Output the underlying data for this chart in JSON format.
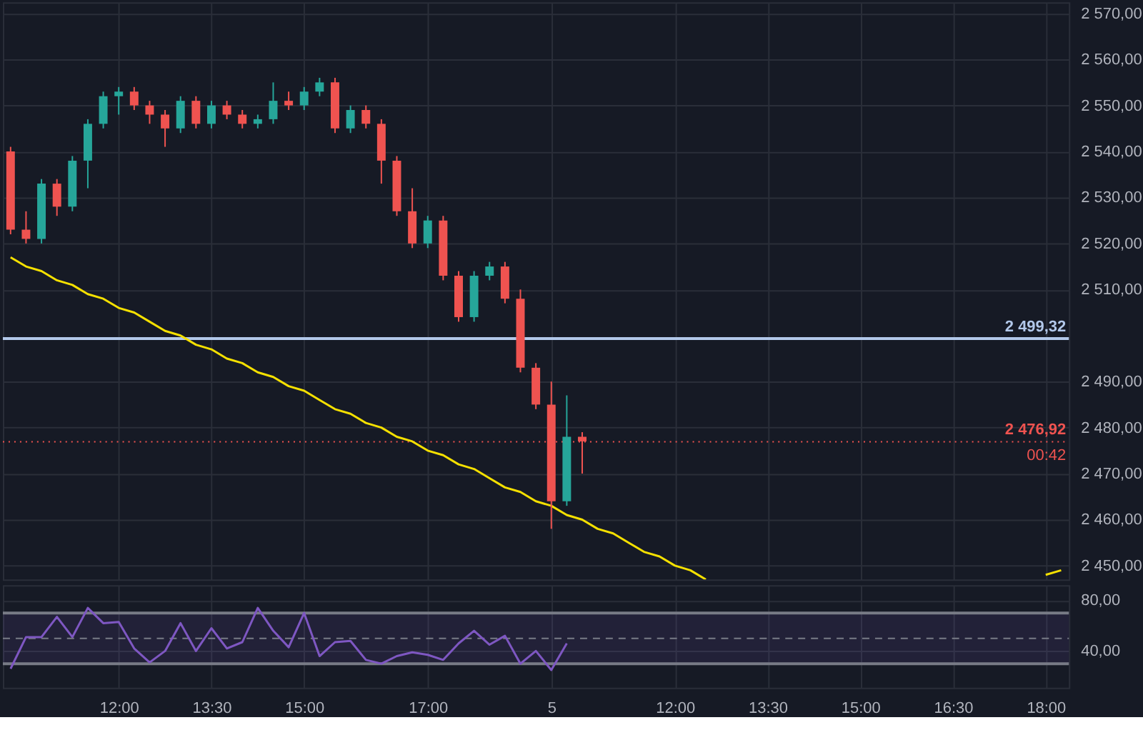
{
  "chart_data": [
    {
      "type": "candlestick",
      "categories": [
        null,
        null,
        null,
        null,
        null,
        null,
        null,
        null,
        null,
        null,
        null,
        null,
        null,
        null,
        null,
        null,
        null,
        null,
        null,
        null,
        null,
        null,
        null,
        null,
        null,
        null,
        null,
        null,
        null,
        null,
        null,
        null,
        null,
        null,
        null,
        null,
        null,
        null,
        null,
        null,
        null,
        null,
        null,
        null,
        null,
        null,
        null,
        null,
        null,
        null,
        null,
        null,
        null,
        null,
        null,
        null,
        null,
        null,
        null,
        null,
        null,
        null,
        null,
        null,
        null,
        null,
        null,
        null,
        null
      ],
      "ohlc": [
        [
          2540,
          2541,
          2522,
          2523
        ],
        [
          2523,
          2527,
          2520,
          2521
        ],
        [
          2521,
          2534,
          2520,
          2533
        ],
        [
          2533,
          2534,
          2526,
          2528
        ],
        [
          2528,
          2539,
          2527,
          2538
        ],
        [
          2538,
          2547,
          2532,
          2546
        ],
        [
          2546,
          2553,
          2545,
          2552
        ],
        [
          2552,
          2554,
          2548,
          2553
        ],
        [
          2553,
          2554,
          2549,
          2550
        ],
        [
          2550,
          2551,
          2546,
          2548
        ],
        [
          2548,
          2549,
          2541,
          2545
        ],
        [
          2545,
          2552,
          2544,
          2551
        ],
        [
          2551,
          2552,
          2545,
          2546
        ],
        [
          2546,
          2551,
          2545,
          2550
        ],
        [
          2550,
          2551,
          2547,
          2548
        ],
        [
          2548,
          2549,
          2545,
          2546
        ],
        [
          2546,
          2548,
          2545,
          2547
        ],
        [
          2547,
          2555,
          2546,
          2551
        ],
        [
          2551,
          2553,
          2549,
          2550
        ],
        [
          2550,
          2554,
          2549,
          2553
        ],
        [
          2553,
          2556,
          2552,
          2555
        ],
        [
          2555,
          2556,
          2544,
          2545
        ],
        [
          2545,
          2550,
          2544,
          2549
        ],
        [
          2549,
          2550,
          2545,
          2546
        ],
        [
          2546,
          2547,
          2533,
          2538
        ],
        [
          2538,
          2539,
          2526,
          2527
        ],
        [
          2527,
          2532,
          2519,
          2520
        ],
        [
          2520,
          2526,
          2519,
          2525
        ],
        [
          2525,
          2526,
          2512,
          2513
        ],
        [
          2513,
          2514,
          2503,
          2504
        ],
        [
          2504,
          2514,
          2503,
          2513
        ],
        [
          2513,
          2516,
          2512,
          2515
        ],
        [
          2515,
          2516,
          2507,
          2508
        ],
        [
          2508,
          2510,
          2492,
          2493
        ],
        [
          2493,
          2494,
          2484,
          2485
        ],
        [
          2485,
          2490,
          2458,
          2464
        ],
        [
          2464,
          2487,
          2463,
          2478
        ],
        [
          2478,
          2479,
          2470,
          2477
        ],
        null,
        null,
        null,
        null,
        null,
        null,
        null,
        null,
        null,
        null,
        null,
        null,
        null,
        null,
        null,
        null,
        null,
        null,
        null,
        null,
        null,
        null,
        null,
        null,
        null,
        null,
        null,
        null,
        null,
        null,
        null
      ],
      "colors": [
        "#ef5350",
        "#ef5350",
        "#26a69a",
        "#ef5350",
        "#26a69a",
        "#26a69a",
        "#26a69a",
        "#26a69a",
        "#ef5350",
        "#ef5350",
        "#ef5350",
        "#26a69a",
        "#ef5350",
        "#26a69a",
        "#ef5350",
        "#ef5350",
        "#26a69a",
        "#26a69a",
        "#ef5350",
        "#26a69a",
        "#26a69a",
        "#ef5350",
        "#26a69a",
        "#ef5350",
        "#ef5350",
        "#ef5350",
        "#ef5350",
        "#26a69a",
        "#ef5350",
        "#ef5350",
        "#26a69a",
        "#26a69a",
        "#ef5350",
        "#ef5350",
        "#ef5350",
        "#ef5350",
        "#26a69a",
        "#ef5350",
        null,
        null,
        null,
        null,
        null,
        null,
        null,
        null,
        null,
        null,
        null,
        null,
        null,
        null,
        null,
        null,
        null,
        null,
        null,
        null,
        null,
        null,
        null,
        null,
        null,
        null,
        null,
        null,
        null,
        null,
        null
      ],
      "series": [
        {
          "type": "line",
          "color": "#f5e000",
          "values": [
            2517,
            2515,
            2514,
            2512,
            2511,
            2509,
            2508,
            2506,
            2505,
            2503,
            2501,
            2500,
            2498,
            2497,
            2495,
            2494,
            2492,
            2491,
            2489,
            2488,
            2486,
            2484,
            2483,
            2481,
            2480,
            2478,
            2477,
            2475,
            2474,
            2472,
            2471,
            2469,
            2467,
            2466,
            2464,
            2463,
            2461,
            2460,
            2458,
            2457,
            2455,
            2453,
            2452,
            2450,
            2449,
            2447,
            null,
            null,
            null,
            null,
            null,
            null,
            null,
            null,
            null,
            null,
            null,
            null,
            null,
            null,
            null,
            null,
            null,
            null,
            null,
            null,
            null,
            null,
            null
          ]
        },
        {
          "type": "line",
          "color": "#f5e000",
          "values": [
            null,
            null,
            null,
            null,
            null,
            null,
            null,
            null,
            null,
            null,
            null,
            null,
            null,
            null,
            null,
            null,
            null,
            null,
            null,
            null,
            null,
            null,
            null,
            null,
            null,
            null,
            null,
            null,
            null,
            null,
            null,
            null,
            null,
            null,
            null,
            null,
            null,
            null,
            null,
            null,
            null,
            null,
            null,
            null,
            null,
            null,
            null,
            null,
            null,
            null,
            null,
            null,
            null,
            null,
            null,
            null,
            null,
            null,
            null,
            null,
            null,
            null,
            null,
            null,
            null,
            null,
            null,
            2448,
            2449
          ]
        }
      ],
      "ylim": [
        2447,
        2572.4
      ],
      "yticks": [
        {
          "value": 2450,
          "label": "2 450,00"
        },
        {
          "value": 2460,
          "label": "2 460,00"
        },
        {
          "value": 2470,
          "label": "2 470,00"
        },
        {
          "value": 2480,
          "label": "2 480,00"
        },
        {
          "value": 2490,
          "label": "2 490,00"
        },
        {
          "value": 2510,
          "label": "2 510,00"
        },
        {
          "value": 2520,
          "label": "2 520,00"
        },
        {
          "value": 2530,
          "label": "2 530,00"
        },
        {
          "value": 2540,
          "label": "2 540,00"
        },
        {
          "value": 2550,
          "label": "2 550,00"
        },
        {
          "value": 2560,
          "label": "2 560,00"
        },
        {
          "value": 2570,
          "label": "2 570,00"
        }
      ],
      "tick_labels": "y",
      "grid": true,
      "ref_lines": [
        {
          "axis": "y",
          "value": 2499.32,
          "label": "2 499,32",
          "color": "#b2c8ea",
          "line_style": "solid"
        },
        {
          "axis": "y",
          "value": 2476.92,
          "label": "2 476,92",
          "color": "#ef5350",
          "line_style": "dotted"
        }
      ],
      "annotations": [
        {
          "text": "00:42",
          "y": 2476.92
        }
      ]
    },
    {
      "type": "line",
      "categories": [
        null,
        null,
        null,
        null,
        null,
        null,
        null,
        "12:00",
        null,
        null,
        null,
        null,
        null,
        "13:30",
        null,
        null,
        null,
        null,
        null,
        "15:00",
        null,
        null,
        null,
        null,
        null,
        null,
        null,
        "17:00",
        null,
        null,
        null,
        null,
        null,
        null,
        null,
        "5",
        null,
        null,
        null,
        null,
        null,
        null,
        null,
        "12:00",
        null,
        null,
        null,
        null,
        null,
        "13:30",
        null,
        null,
        null,
        null,
        null,
        "15:00",
        null,
        null,
        null,
        null,
        null,
        "16:30",
        null,
        null,
        null,
        null,
        null,
        "18:00",
        null
      ],
      "series": [
        {
          "color": "#7e57c2",
          "values": [
            26,
            51,
            51,
            67,
            51,
            74,
            62,
            63,
            42,
            31,
            40,
            62,
            40,
            58,
            42,
            47,
            74,
            56,
            43,
            70,
            36,
            47,
            48,
            33,
            30,
            36,
            39,
            37,
            33,
            46,
            56,
            45,
            52,
            30,
            40,
            25,
            46,
            null,
            null,
            null,
            null,
            null,
            null,
            null,
            null,
            null,
            null,
            null,
            null,
            null,
            null,
            null,
            null,
            null,
            null,
            null,
            null,
            null,
            null,
            null,
            null,
            null,
            null,
            null,
            null,
            null,
            null,
            null,
            null
          ]
        }
      ],
      "ylim": [
        11,
        92
      ],
      "yticks": [
        {
          "value": 40,
          "label": "40,00"
        },
        {
          "value": 80,
          "label": "80,00"
        }
      ],
      "grid": true,
      "bands": [
        {
          "axis": "y",
          "from": 30,
          "to": 70,
          "color": "#7e57c2"
        }
      ],
      "ref_lines": [
        {
          "axis": "y",
          "value": 50,
          "color": "#787b86",
          "line_style": "dashed"
        },
        {
          "axis": "y",
          "value": 30,
          "color": "#787b86",
          "line_style": "solid"
        },
        {
          "axis": "y",
          "value": 70,
          "color": "#787b86",
          "line_style": "solid"
        }
      ]
    }
  ]
}
